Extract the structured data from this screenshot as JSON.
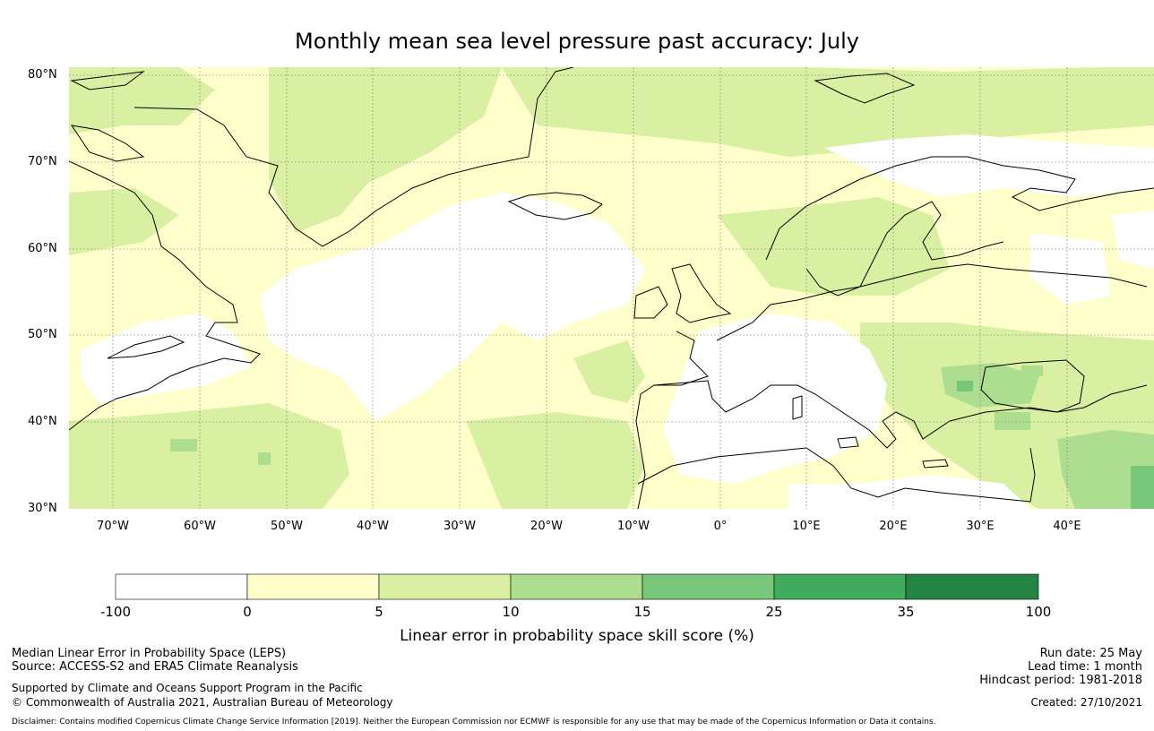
{
  "title": "Monthly mean sea level pressure past accuracy: July",
  "lat_labels": [
    "80°N",
    "70°N",
    "60°N",
    "50°N",
    "40°N",
    "30°N"
  ],
  "lon_labels": [
    "70°W",
    "60°W",
    "50°W",
    "40°W",
    "30°W",
    "20°W",
    "10°W",
    "0°",
    "10°E",
    "20°E",
    "30°E",
    "40°E"
  ],
  "colorbar": {
    "title": "Linear error in probability space skill score (%)",
    "ticks": [
      "-100",
      "0",
      "5",
      "10",
      "15",
      "25",
      "35",
      "100"
    ],
    "colors": [
      "#ffffff",
      "#ffffcc",
      "#d9f0a3",
      "#addd8e",
      "#78c679",
      "#41ab5d",
      "#238443"
    ]
  },
  "footer": {
    "left_line1": "Median Linear Error in Probability Space (LEPS)",
    "left_line2": "Source: ACCESS-S2 and ERA5 Climate Reanalysis",
    "left_line3": "Supported by Climate and Oceans Support Program in the Pacific",
    "left_line4": "© Commonwealth of Australia 2021, Australian Bureau of Meteorology",
    "right_line1": "Run date: 25 May",
    "right_line2": "Lead time: 1 month",
    "right_line3": "Hindcast period: 1981-2018",
    "right_line4": "Created: 27/10/2021",
    "disclaimer": "Disclaimer: Contains modified Copernicus Climate Change Service Information [2019]. Neither the European Commission nor ECMWF is responsible for any use that may be made of the Copernicus Information or Data it contains."
  }
}
